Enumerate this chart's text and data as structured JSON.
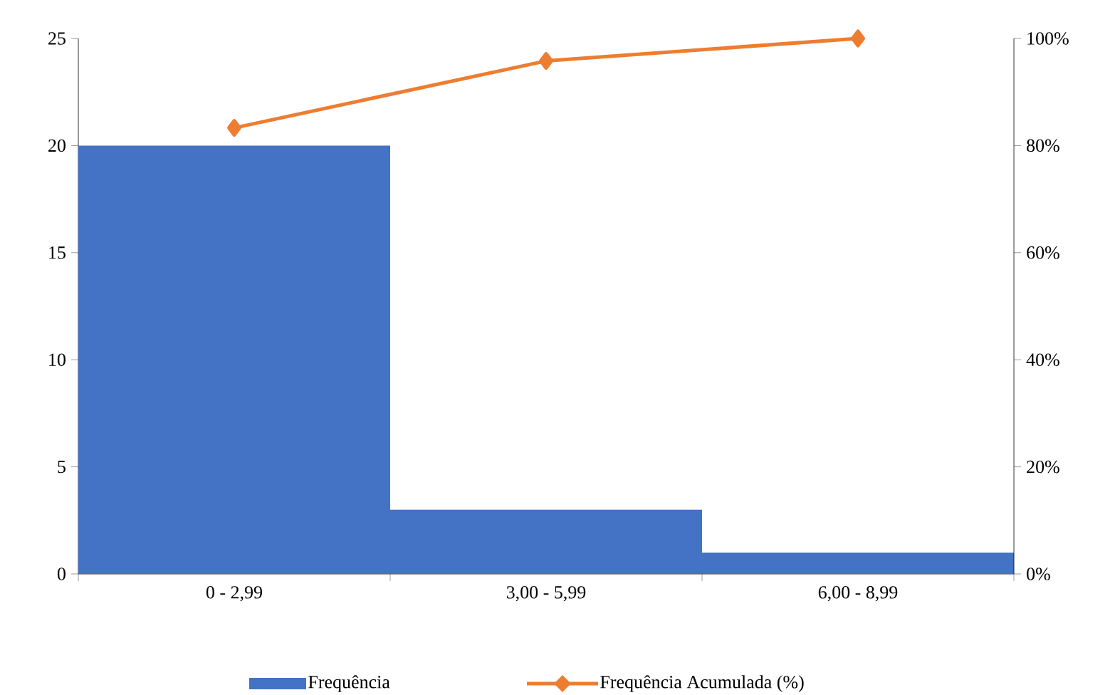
{
  "chart_data": {
    "type": "bar",
    "categories": [
      "0 - 2,99",
      "3,00 - 5,99",
      "6,00 - 8,99"
    ],
    "series": [
      {
        "name": "Frequência",
        "color": "#4472c4",
        "values": [
          20,
          3,
          1
        ]
      },
      {
        "name": "Frequência Acumulada (%)",
        "type": "line",
        "axis": "y2",
        "color": "#ed7d31",
        "marker": "diamond",
        "values": [
          83.3,
          95.8,
          100
        ]
      }
    ],
    "ylim": [
      0,
      25
    ],
    "yticks": [
      0,
      5,
      10,
      15,
      20,
      25
    ],
    "y2lim": [
      0,
      100
    ],
    "y2ticks": [
      {
        "value": 0,
        "label": "0%"
      },
      {
        "value": 20,
        "label": "20%"
      },
      {
        "value": 40,
        "label": "40%"
      },
      {
        "value": 60,
        "label": "60%"
      },
      {
        "value": 80,
        "label": "80%"
      },
      {
        "value": 100,
        "label": "100%"
      }
    ],
    "legend": "bottom",
    "grid": false
  }
}
